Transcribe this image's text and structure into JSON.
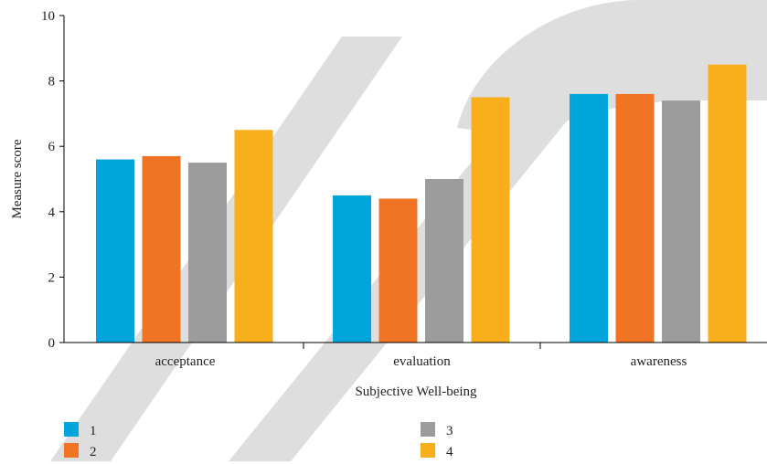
{
  "chart_data": {
    "type": "bar",
    "categories": [
      "acceptance",
      "evaluation",
      "awareness"
    ],
    "series": [
      {
        "name": "1",
        "color": "#00a5dc",
        "values": [
          5.6,
          4.5,
          7.6
        ]
      },
      {
        "name": "2",
        "color": "#f07424",
        "values": [
          5.7,
          4.4,
          7.6
        ]
      },
      {
        "name": "3",
        "color": "#9b9c9b",
        "values": [
          5.5,
          5.0,
          7.4
        ]
      },
      {
        "name": "4",
        "color": "#f9ae1c",
        "values": [
          6.5,
          7.5,
          8.5
        ]
      }
    ],
    "xlabel": "Subjective Well-being",
    "ylabel": "Measure score",
    "ylim": [
      0,
      10
    ],
    "yticks": [
      0,
      2,
      4,
      6,
      8,
      10
    ],
    "legend_position": "bottom",
    "grid": false
  },
  "watermark": {
    "text": "RETRACTED",
    "color": "#dedede"
  }
}
